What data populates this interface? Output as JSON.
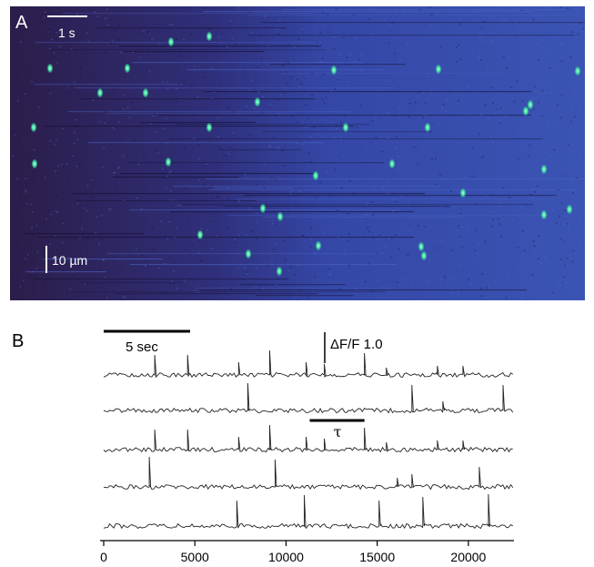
{
  "figure": {
    "panels": {
      "a": {
        "label": "A",
        "time_scale_label": "1 s",
        "space_scale_label": "10 µm",
        "colors": {
          "background_dark": "#2a1f4e",
          "background_light": "#3d55b0",
          "spark": "#3fe0a0"
        }
      },
      "b": {
        "label": "B",
        "time_scale_label": "5 sec",
        "amplitude_scale_label": "ΔF/F 1.0",
        "interval_label": "τ"
      }
    }
  },
  "chart_data": {
    "type": "line",
    "x_ticks": [
      0,
      5000,
      10000,
      15000,
      20000
    ],
    "xlim": [
      0,
      22500
    ],
    "y_units": "ΔF/F",
    "series": [
      {
        "spikes": [
          2800,
          4600,
          7400,
          9100,
          11100,
          12100,
          14300,
          15500,
          18300,
          19700
        ]
      },
      {
        "spikes": [
          7900,
          16900,
          18600,
          21900
        ]
      },
      {
        "spikes": [
          2800,
          4600,
          7400,
          9100,
          11100,
          12100,
          14300,
          15500,
          18300,
          19700
        ]
      },
      {
        "spikes": [
          2500,
          9400,
          16100,
          16900,
          20600
        ]
      },
      {
        "spikes": [
          7300,
          11000,
          15100,
          17500,
          21100
        ]
      }
    ],
    "interval_marker": {
      "start": 11300,
      "end": 14300
    }
  }
}
